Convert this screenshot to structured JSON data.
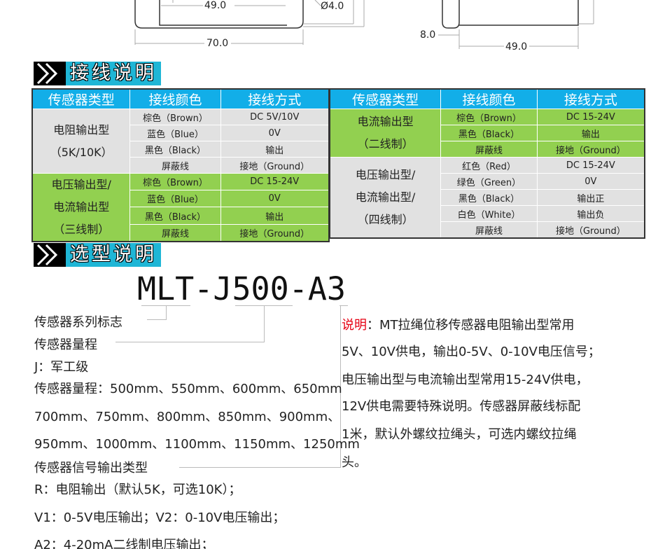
{
  "drawing": {
    "dim_inner_width": "49.0",
    "dim_hole": "Ø4.0",
    "dim_outer_width": "70.0",
    "dim_side_offset": "8.0",
    "dim_side_width": "49.0"
  },
  "wiring_section": {
    "title": "接线说明"
  },
  "left_table": {
    "headers": [
      "传感器类型",
      "接线颜色",
      "接线方式"
    ],
    "groups": [
      {
        "type_lines": [
          "电阻输出型",
          "（5K/10K）"
        ],
        "bg": "#e1e1e1",
        "rows": [
          [
            "棕色（Brown）",
            "DC 5V/10V"
          ],
          [
            "蓝色（Blue）",
            "0V"
          ],
          [
            "黑色（Black）",
            "输出"
          ],
          [
            "屏蔽线",
            "接地（Ground）"
          ]
        ]
      },
      {
        "type_lines": [
          "电压输出型/",
          "电流输出型",
          "（三线制）"
        ],
        "bg": "#92d050",
        "rows": [
          [
            "棕色（Brown）",
            "DC 15-24V"
          ],
          [
            "蓝色（Blue）",
            "0V"
          ],
          [
            "黑色（Black）",
            "输出"
          ],
          [
            "屏蔽线",
            "接地（Ground）"
          ]
        ]
      }
    ]
  },
  "right_table": {
    "headers": [
      "传感器类型",
      "接线颜色",
      "接线方式"
    ],
    "groups": [
      {
        "type_lines": [
          "电流输出型",
          "（二线制）"
        ],
        "bg": "#92d050",
        "rows": [
          [
            "棕色（Brown）",
            "DC 15-24V"
          ],
          [
            "黑色（Black）",
            "输出"
          ],
          [
            "屏蔽线",
            "接地（Ground）"
          ]
        ]
      },
      {
        "type_lines": [
          "电压输出型/",
          "电流输出型/",
          "（四线制）"
        ],
        "bg": "#e1e1e1",
        "rows": [
          [
            "红色（Red）",
            "DC 15-24V"
          ],
          [
            "绿色（Green）",
            "0V"
          ],
          [
            "黑色（Black）",
            "输出正"
          ],
          [
            "白色（White）",
            "输出负"
          ],
          [
            "屏蔽线",
            "接地（Ground）"
          ]
        ]
      }
    ]
  },
  "selection_section": {
    "title": "选型说明"
  },
  "model": {
    "code": "MLT-J500-A3"
  },
  "left_notes": [
    "传感器系列标志",
    "传感器量程",
    "J：军工级",
    "传感器量程：500mm、550mm、600mm、650mm",
    "700mm、750mm、800mm、850mm、900mm、",
    "950mm、1000mm、1100mm、1150mm、1250mm",
    "传感器信号输出类型",
    "R：电阻输出（默认5K，可选10K）；",
    "V1：0-5V电压输出；V2：0-10V电压输出；",
    "A2：4-20mA二线制电压输出；"
  ],
  "note": {
    "label": "说明",
    "label_color": "#e60012",
    "first_line": "：MT拉绳位移传感器电阻输出型常用",
    "lines": [
      "5V、10V供电，输出0-5V、0-10V电压信号；",
      "电压输出型与电流输出型常用15-24V供电，",
      "12V供电需要特殊说明。传感器屏蔽线标配",
      "1米，默认外螺纹拉绳头，可选内螺纹拉绳",
      "头。"
    ]
  },
  "colors": {
    "header_blue": "#12aee8",
    "green": "#92d050",
    "gray": "#e1e1e1",
    "section_cyan": "#1fb6d6"
  }
}
